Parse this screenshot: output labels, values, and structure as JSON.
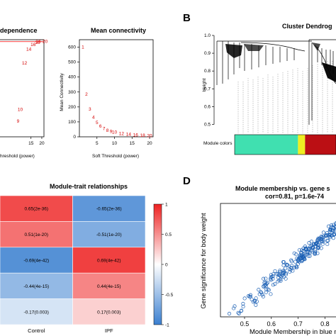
{
  "panels": {
    "a": {
      "title": "dependence",
      "x_ticks": [
        "15",
        "20"
      ],
      "xlabel": "hreshold (power)",
      "y_max": 1.0
    },
    "a2": {
      "title": "Mean connectivity",
      "ylabel": "Mean Connectivity",
      "xlabel": "Soft Threshold (power)"
    },
    "b": {
      "letter": "B",
      "title": "Cluster Dendrog",
      "ylabel": "Height",
      "colors_label": "Module colors"
    },
    "c": {
      "title": "Module-trait relationships"
    },
    "d": {
      "letter": "D",
      "title_line1": "Module membership vs. gene s",
      "title_line2": "cor=0.81, p=1.6e-74",
      "ylabel": "Gene significance for body weight",
      "xlabel": "Module Membership in blue m"
    }
  },
  "chart_data": [
    {
      "type": "scatter",
      "panel": "scale-free-fit (partial)",
      "title": "dependence",
      "xlabel": "hreshold (power)",
      "x_ticks": [
        15,
        20
      ],
      "xlim": [
        0,
        21
      ],
      "ylim": [
        0,
        1
      ],
      "points": [
        {
          "x": 9,
          "y": 0.16,
          "label": "9"
        },
        {
          "x": 10,
          "y": 0.28,
          "label": "10"
        },
        {
          "x": 12,
          "y": 0.76,
          "label": "12"
        },
        {
          "x": 14,
          "y": 0.9,
          "label": "14"
        },
        {
          "x": 16,
          "y": 0.95,
          "label": "16"
        },
        {
          "x": 18,
          "y": 0.97,
          "label": "18"
        },
        {
          "x": 20,
          "y": 0.98,
          "label": "16-20"
        }
      ],
      "line_y": 0.98,
      "colors": {
        "points": "#d40000",
        "line": "#ff0000"
      }
    },
    {
      "type": "scatter",
      "panel": "mean-connectivity",
      "title": "Mean connectivity",
      "xlabel": "Soft Threshold (power)",
      "ylabel": "Mean Connectivity",
      "x_ticks": [
        5,
        10,
        15,
        20
      ],
      "y_ticks": [
        0,
        100,
        200,
        300,
        400,
        500,
        600
      ],
      "xlim": [
        0,
        21
      ],
      "ylim": [
        0,
        650
      ],
      "points": [
        {
          "x": 1,
          "y": 600,
          "label": "1"
        },
        {
          "x": 2,
          "y": 285,
          "label": "2"
        },
        {
          "x": 3,
          "y": 185,
          "label": "3"
        },
        {
          "x": 4,
          "y": 130,
          "label": "4"
        },
        {
          "x": 5,
          "y": 95,
          "label": "5"
        },
        {
          "x": 6,
          "y": 70,
          "label": "6"
        },
        {
          "x": 7,
          "y": 55,
          "label": "7"
        },
        {
          "x": 8,
          "y": 42,
          "label": "8"
        },
        {
          "x": 9,
          "y": 35,
          "label": "9"
        },
        {
          "x": 10,
          "y": 30,
          "label": "10"
        },
        {
          "x": 12,
          "y": 22,
          "label": "12"
        },
        {
          "x": 14,
          "y": 17,
          "label": "14"
        },
        {
          "x": 16,
          "y": 13,
          "label": "16"
        },
        {
          "x": 18,
          "y": 10,
          "label": "18"
        },
        {
          "x": 20,
          "y": 8,
          "label": "20"
        }
      ],
      "colors": {
        "points": "#d40000"
      }
    },
    {
      "type": "heatmap",
      "panel": "module-trait",
      "title": "Module-trait relationships",
      "columns": [
        "Control",
        "IPF"
      ],
      "cells": [
        [
          "0.65(2e-36)",
          "-0.65(2e-36)"
        ],
        [
          "0.51(1e-20)",
          "-0.51(1e-20)"
        ],
        [
          "-0.69(4e-42)",
          "0.69(4e-42)"
        ],
        [
          "-0.44(4e-15)",
          "0.44(4e-15)"
        ],
        [
          "-0.17(0.003)",
          "0.17(0.003)"
        ]
      ],
      "values": [
        [
          0.65,
          -0.65
        ],
        [
          0.51,
          -0.51
        ],
        [
          -0.69,
          0.69
        ],
        [
          -0.44,
          0.44
        ],
        [
          -0.17,
          0.17
        ]
      ],
      "legend_ticks": [
        "1",
        "0.5",
        "0",
        "-0.5",
        "-1"
      ],
      "legend_range": [
        -1,
        1
      ],
      "colors": {
        "low": "#3a7fd0",
        "mid": "#ffffff",
        "high": "#ee2222"
      }
    },
    {
      "type": "scatter",
      "panel": "module-membership",
      "title": "Module membership vs. gene s",
      "subtitle": "cor=0.81, p=1.6e-74",
      "xlabel": "Module Membership in blue m",
      "ylabel": "Gene significance for body weight",
      "x_ticks": [
        0.5,
        0.6,
        0.7,
        0.8
      ],
      "xlim": [
        0.41,
        0.86
      ],
      "ylim": [
        0.15,
        0.85
      ],
      "n_points": 260,
      "trend": {
        "slope": 1.35,
        "intercept": -0.44,
        "noise": 0.06
      },
      "colors": {
        "points": "#1a5fb4"
      }
    },
    {
      "type": "dendrogram",
      "panel": "cluster-dendrogram",
      "title": "Cluster Dendrog",
      "ylabel": "Height",
      "y_ticks": [
        0.5,
        0.6,
        0.7,
        0.8,
        0.9,
        1.0
      ],
      "ylim": [
        0.45,
        1.0
      ],
      "module_colors": [
        {
          "color": "#40e0b0",
          "fraction": 0.625
        },
        {
          "color": "#eeee22",
          "fraction": 0.07
        },
        {
          "color": "#bb0f14",
          "fraction": 0.305
        }
      ]
    }
  ]
}
